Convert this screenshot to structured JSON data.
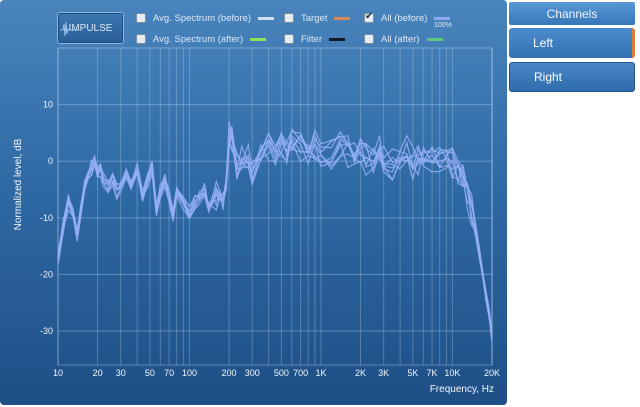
{
  "toolbar": {
    "impulse_label": "IMPULSE"
  },
  "legend": [
    {
      "label": "Avg. Spectrum (before)",
      "checked": false,
      "color": "#cfe0f2"
    },
    {
      "label": "Avg. Spectrum (after)",
      "checked": false,
      "color": "#8fe25a"
    },
    {
      "label": "Target",
      "checked": false,
      "color": "#d98a56"
    },
    {
      "label": "Filter",
      "checked": false,
      "color": "#0e1a28"
    },
    {
      "label": "All (before)",
      "checked": true,
      "color": "#8ea8f2"
    },
    {
      "label": "All (after)",
      "checked": false,
      "color": "#5cc97a"
    }
  ],
  "zoom_label": "100%",
  "channels": {
    "header": "Channels",
    "items": [
      {
        "label": "Left",
        "selected": true
      },
      {
        "label": "Right",
        "selected": false
      }
    ]
  },
  "chart_data": {
    "type": "line",
    "xlabel": "Frequency, Hz",
    "ylabel": "Normalized level, dB",
    "x_scale": "log",
    "xlim": [
      10,
      20000
    ],
    "ylim": [
      -36,
      20
    ],
    "grid": true,
    "x_ticks": [
      {
        "value": 10,
        "label": "10"
      },
      {
        "value": 20,
        "label": "20"
      },
      {
        "value": 30,
        "label": "30"
      },
      {
        "value": 50,
        "label": "50"
      },
      {
        "value": 70,
        "label": "70"
      },
      {
        "value": 100,
        "label": "100"
      },
      {
        "value": 200,
        "label": "200"
      },
      {
        "value": 300,
        "label": "300"
      },
      {
        "value": 500,
        "label": "500"
      },
      {
        "value": 700,
        "label": "700"
      },
      {
        "value": 1000,
        "label": "1K"
      },
      {
        "value": 2000,
        "label": "2K"
      },
      {
        "value": 3000,
        "label": "3K"
      },
      {
        "value": 5000,
        "label": "5K"
      },
      {
        "value": 7000,
        "label": "7K"
      },
      {
        "value": 10000,
        "label": "10K"
      },
      {
        "value": 20000,
        "label": "20K"
      }
    ],
    "y_ticks": [
      10,
      0,
      -10,
      -20,
      -30
    ],
    "series_color": "#94aef5",
    "base_response": {
      "x": [
        10,
        11,
        12,
        13,
        14,
        15,
        16,
        17,
        18,
        19,
        20,
        21,
        22,
        24,
        26,
        28,
        30,
        33,
        36,
        40,
        44,
        48,
        52,
        56,
        60,
        65,
        70,
        75,
        80,
        90,
        100,
        110,
        120,
        130,
        140,
        150,
        160,
        170,
        180,
        190,
        200,
        210,
        230,
        250,
        280,
        300,
        350,
        400,
        450,
        500,
        550,
        600,
        700,
        800,
        900,
        1000,
        1200,
        1400,
        1600,
        1800,
        2000,
        2200,
        2500,
        2800,
        3000,
        3500,
        4000,
        4500,
        5000,
        5500,
        6000,
        7000,
        8000,
        9000,
        10000,
        11000,
        12000,
        13000,
        14000,
        15000,
        16000,
        17000,
        18000,
        19000,
        20000
      ],
      "y": [
        -17,
        -11,
        -7,
        -9,
        -13,
        -8,
        -4,
        -2,
        -1,
        0,
        -2,
        -1,
        -3,
        -4,
        -3,
        -5,
        -4,
        -2,
        -4,
        -1,
        -6,
        -3,
        -1,
        -8,
        -5,
        -3,
        -6,
        -9,
        -5,
        -7,
        -9,
        -7,
        -6,
        -5,
        -8,
        -7,
        -6,
        -5,
        -7,
        -4,
        5,
        4,
        -1,
        1,
        1,
        -1,
        2,
        3,
        1,
        3,
        2,
        4,
        3,
        2,
        3,
        2,
        1,
        3,
        2,
        1,
        2,
        1,
        0,
        2,
        1,
        0,
        1,
        2,
        0,
        1,
        2,
        1,
        0,
        0,
        0,
        -2,
        -3,
        -6,
        -8,
        -12,
        -16,
        -20,
        -24,
        -27,
        -31
      ]
    },
    "series_count": 8
  }
}
